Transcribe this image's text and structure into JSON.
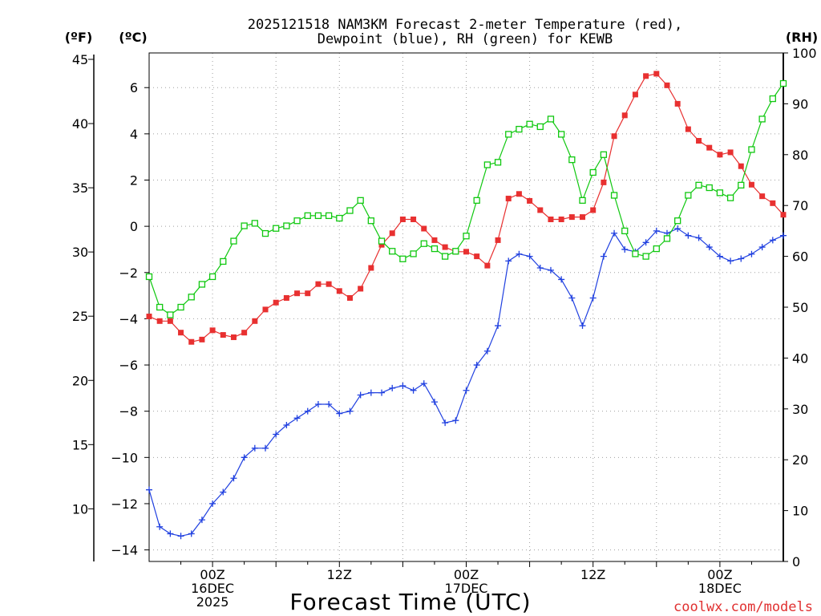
{
  "chart_data": {
    "type": "line",
    "title_line1": "2025121518 NAM3KM Forecast 2-meter Temperature (red),",
    "title_line2": "Dewpoint (blue), RH (green) for KEWB",
    "xlabel": "Forecast Time (UTC)",
    "unit_left_f": "(ºF)",
    "unit_left_c": "(ºC)",
    "unit_right_rh": "(RH)",
    "credit": "coolwx.com/models",
    "x_range_hours": [
      -6,
      54
    ],
    "ylim_c": [
      -14.5,
      7.5
    ],
    "ylim_rh": [
      0,
      100
    ],
    "f_ticks": [
      10,
      15,
      20,
      25,
      30,
      35,
      40,
      45
    ],
    "c_ticks": [
      -14,
      -12,
      -10,
      -8,
      -6,
      -4,
      -2,
      0,
      2,
      4,
      6
    ],
    "rh_ticks": [
      0,
      10,
      20,
      30,
      40,
      50,
      60,
      70,
      80,
      90,
      100
    ],
    "x_ticks": [
      {
        "hour": 0,
        "lines": [
          "00Z",
          "16DEC",
          "2025"
        ]
      },
      {
        "hour": 12,
        "lines": [
          "12Z"
        ]
      },
      {
        "hour": 24,
        "lines": [
          "00Z",
          "17DEC"
        ]
      },
      {
        "hour": 36,
        "lines": [
          "12Z"
        ]
      },
      {
        "hour": 48,
        "lines": [
          "00Z",
          "18DEC"
        ]
      }
    ],
    "hours": [
      -6,
      -5,
      -4,
      -3,
      -2,
      -1,
      0,
      1,
      2,
      3,
      4,
      5,
      6,
      7,
      8,
      9,
      10,
      11,
      12,
      13,
      14,
      15,
      16,
      17,
      18,
      19,
      20,
      21,
      22,
      23,
      24,
      25,
      26,
      27,
      28,
      29,
      30,
      31,
      32,
      33,
      34,
      35,
      36,
      37,
      38,
      39,
      40,
      41,
      42,
      43,
      44,
      45,
      46,
      47,
      48,
      49,
      50,
      51,
      52,
      53,
      54
    ],
    "series": [
      {
        "name": "Temperature (°C)",
        "color": "#e83030",
        "marker": "filled-square",
        "axis": "c",
        "values": [
          -3.9,
          -4.1,
          -4.1,
          -4.6,
          -5.0,
          -4.9,
          -4.5,
          -4.7,
          -4.8,
          -4.6,
          -4.1,
          -3.6,
          -3.3,
          -3.1,
          -2.9,
          -2.9,
          -2.5,
          -2.5,
          -2.8,
          -3.1,
          -2.7,
          -1.8,
          -0.8,
          -0.3,
          0.3,
          0.3,
          -0.1,
          -0.6,
          -0.9,
          -1.1,
          -1.1,
          -1.3,
          -1.7,
          -0.6,
          1.2,
          1.4,
          1.1,
          0.7,
          0.3,
          0.3,
          0.4,
          0.4,
          0.7,
          1.9,
          3.9,
          4.8,
          5.7,
          6.5,
          6.6,
          6.1,
          5.3,
          4.2,
          3.7,
          3.4,
          3.1,
          3.2,
          2.6,
          1.8,
          1.3,
          1.0,
          0.5
        ]
      },
      {
        "name": "Dewpoint (°C)",
        "color": "#2040e0",
        "marker": "plus",
        "axis": "c",
        "values": [
          -11.4,
          -13.0,
          -13.3,
          -13.4,
          -13.3,
          -12.7,
          -12.0,
          -11.5,
          -10.9,
          -10.0,
          -9.6,
          -9.6,
          -9.0,
          -8.6,
          -8.3,
          -8.0,
          -7.7,
          -7.7,
          -8.1,
          -8.0,
          -7.3,
          -7.2,
          -7.2,
          -7.0,
          -6.9,
          -7.1,
          -6.8,
          -7.6,
          -8.5,
          -8.4,
          -7.1,
          -6.0,
          -5.4,
          -4.3,
          -1.5,
          -1.2,
          -1.3,
          -1.8,
          -1.9,
          -2.3,
          -3.1,
          -4.3,
          -3.1,
          -1.3,
          -0.3,
          -1.0,
          -1.1,
          -0.7,
          -0.2,
          -0.3,
          -0.1,
          -0.4,
          -0.5,
          -0.9,
          -1.3,
          -1.5,
          -1.4,
          -1.2,
          -0.9,
          -0.6,
          -0.4
        ]
      },
      {
        "name": "RH (%)",
        "color": "#10c810",
        "marker": "open-square",
        "axis": "rh",
        "values": [
          56,
          50,
          48.5,
          50,
          52,
          54.5,
          56,
          59,
          63,
          66,
          66.5,
          64.5,
          65.5,
          66,
          67,
          68,
          68,
          68,
          67.5,
          69,
          71,
          67,
          63,
          61,
          59.5,
          60.5,
          62.5,
          61.5,
          60,
          61,
          64,
          71,
          78,
          78.5,
          84,
          85,
          86,
          85.5,
          87,
          84,
          79,
          71,
          76.5,
          80,
          72,
          65,
          60.5,
          60,
          61.5,
          63.5,
          67,
          72,
          74,
          73.5,
          72.5,
          71.5,
          74,
          81,
          87,
          91,
          94
        ]
      }
    ]
  }
}
